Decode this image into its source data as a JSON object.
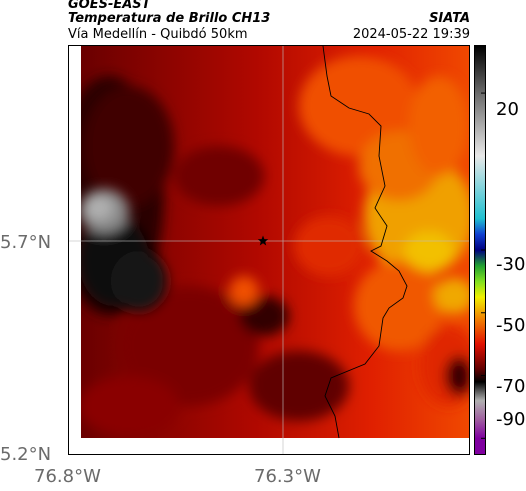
{
  "header": {
    "satellite": "GOES-EAST",
    "product": "Temperatura de Brillo CH13",
    "region": "Vía Medellín - Quibdó 50km",
    "agency": "SIATA",
    "timestamp": "2024-05-22 19:39"
  },
  "map": {
    "latitude_labels": [
      "5.7°N",
      "5.2°N"
    ],
    "longitude_labels": [
      "76.8°W",
      "76.3°W"
    ],
    "marker": "star-icon",
    "colors": {
      "warm_dark": "#3a0000",
      "red": "#d01000",
      "orange": "#f05000",
      "yellow": "#f2a800",
      "cold_gray": "#9a9a9a"
    }
  },
  "colorbar": {
    "tick_labels": [
      "20",
      "-30",
      "-50",
      "-70",
      "-90"
    ],
    "stops": [
      {
        "v": 35,
        "c": "#000000"
      },
      {
        "v": 20,
        "c": "#6a6a6a"
      },
      {
        "v": 0,
        "c": "#e8e8e8"
      },
      {
        "v": -20,
        "c": "#20c0d0"
      },
      {
        "v": -25,
        "c": "#1040d0"
      },
      {
        "v": -30,
        "c": "#000080"
      },
      {
        "v": -35,
        "c": "#20a030"
      },
      {
        "v": -40,
        "c": "#80e020"
      },
      {
        "v": -45,
        "c": "#f0f000"
      },
      {
        "v": -52,
        "c": "#f08000"
      },
      {
        "v": -60,
        "c": "#e01000"
      },
      {
        "v": -68,
        "c": "#600000"
      },
      {
        "v": -72,
        "c": "#000000"
      },
      {
        "v": -78,
        "c": "#b0b0b0"
      },
      {
        "v": -84,
        "c": "#a060a0"
      },
      {
        "v": -90,
        "c": "#8000a0"
      }
    ]
  }
}
